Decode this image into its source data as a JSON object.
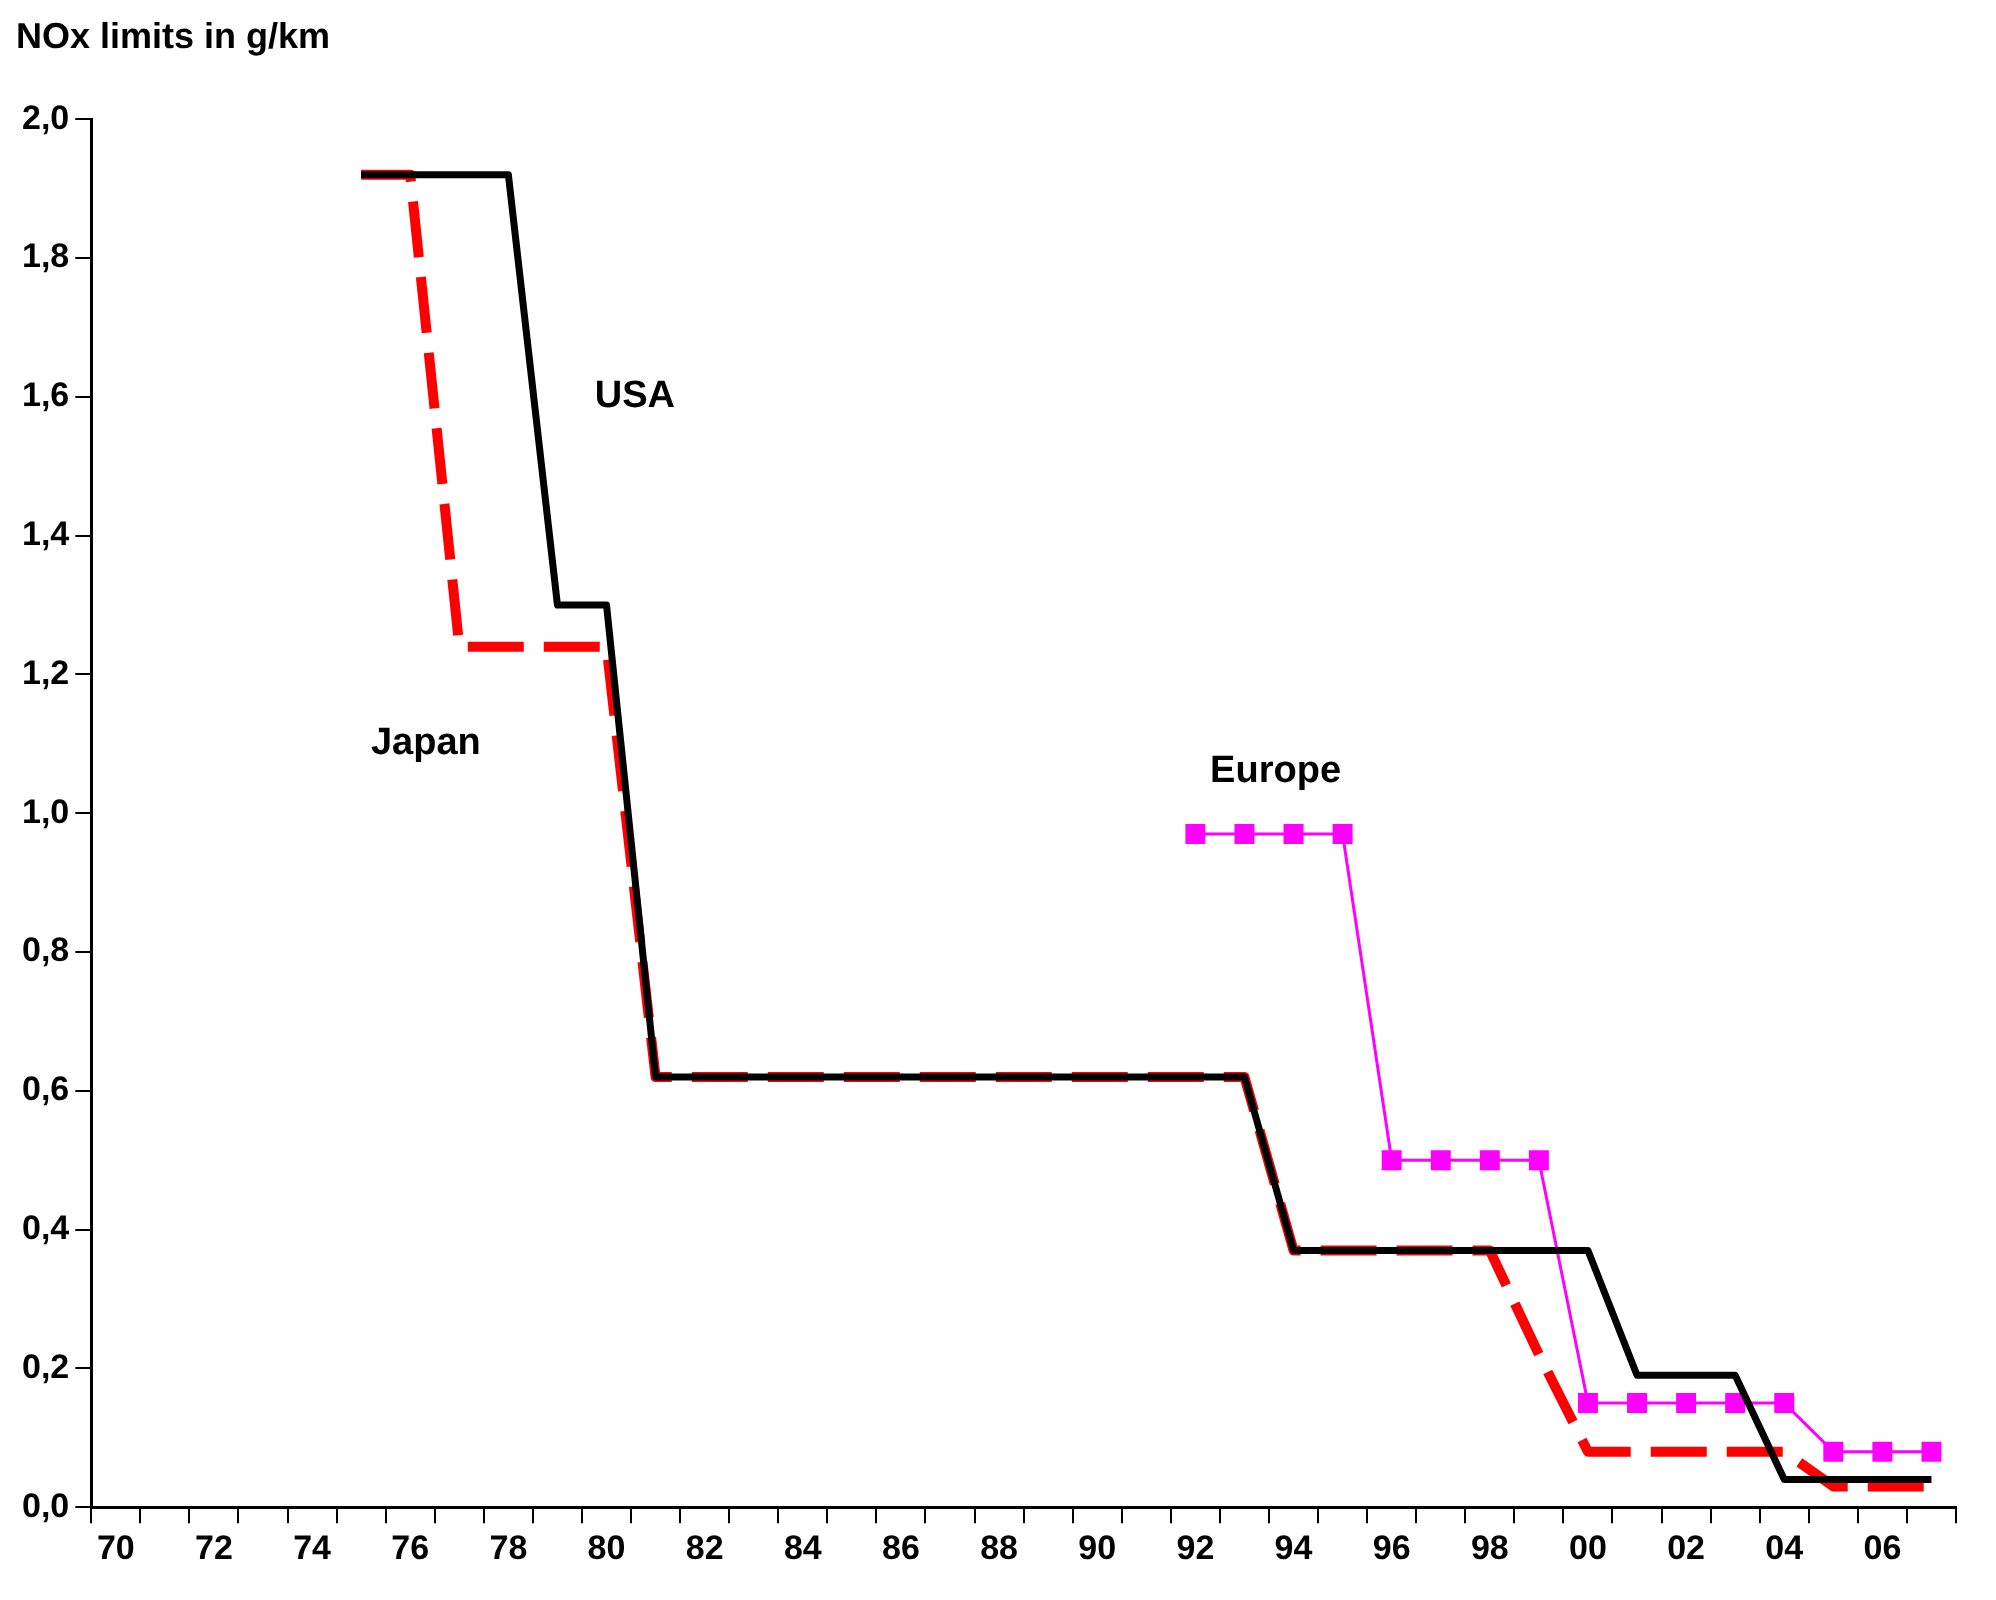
{
  "chart_data": {
    "type": "line",
    "title": "NOx limits in g/km",
    "categories": [
      "70",
      null,
      "72",
      null,
      "74",
      null,
      "76",
      null,
      "78",
      null,
      "80",
      null,
      "82",
      null,
      "84",
      null,
      "86",
      null,
      "88",
      null,
      "90",
      null,
      "92",
      null,
      "94",
      null,
      "96",
      null,
      "98",
      null,
      "00",
      null,
      "02",
      null,
      "04",
      null,
      "06",
      null
    ],
    "series": [
      {
        "name": "USA",
        "color": "#000000",
        "line_style": "solid",
        "marker": "none",
        "values": [
          null,
          null,
          null,
          null,
          null,
          1.92,
          1.92,
          1.92,
          1.92,
          1.3,
          1.3,
          0.62,
          0.62,
          0.62,
          0.62,
          0.62,
          0.62,
          0.62,
          0.62,
          0.62,
          0.62,
          0.62,
          0.62,
          0.62,
          0.37,
          0.37,
          0.37,
          0.37,
          0.37,
          0.37,
          0.37,
          0.19,
          0.19,
          0.19,
          0.04,
          0.04,
          0.04,
          0.04
        ]
      },
      {
        "name": "Japan",
        "color": "#ff0000",
        "line_style": "dashed",
        "marker": "none",
        "values": [
          null,
          null,
          null,
          null,
          null,
          1.92,
          1.92,
          1.24,
          1.24,
          1.24,
          1.24,
          0.62,
          0.62,
          0.62,
          0.62,
          0.62,
          0.62,
          0.62,
          0.62,
          0.62,
          0.62,
          0.62,
          0.62,
          0.62,
          0.37,
          0.37,
          0.37,
          0.37,
          0.37,
          0.22,
          0.08,
          0.08,
          0.08,
          0.08,
          0.08,
          0.03,
          0.03,
          0.03
        ]
      },
      {
        "name": "Europe",
        "color": "#ff00ff",
        "line_style": "solid",
        "marker": "square",
        "values": [
          null,
          null,
          null,
          null,
          null,
          null,
          null,
          null,
          null,
          null,
          null,
          null,
          null,
          null,
          null,
          null,
          null,
          null,
          null,
          null,
          null,
          null,
          0.97,
          0.97,
          0.97,
          0.97,
          0.5,
          0.5,
          0.5,
          0.5,
          0.15,
          0.15,
          0.15,
          0.15,
          0.15,
          0.08,
          0.08,
          0.08
        ]
      }
    ],
    "ylim": [
      0,
      2
    ],
    "yticks": [
      {
        "value": 0,
        "label": "0,0"
      },
      {
        "value": 0.2,
        "label": "0,2"
      },
      {
        "value": 0.4,
        "label": "0,4"
      },
      {
        "value": 0.6,
        "label": "0,6"
      },
      {
        "value": 0.8,
        "label": "0,8"
      },
      {
        "value": 1,
        "label": "1,0"
      },
      {
        "value": 1.2,
        "label": "1,2"
      },
      {
        "value": 1.4,
        "label": "1,4"
      },
      {
        "value": 1.6,
        "label": "1,6"
      },
      {
        "value": 1.8,
        "label": "1,8"
      },
      {
        "value": 2,
        "label": "2,0"
      }
    ],
    "grid": false,
    "legend": false
  }
}
